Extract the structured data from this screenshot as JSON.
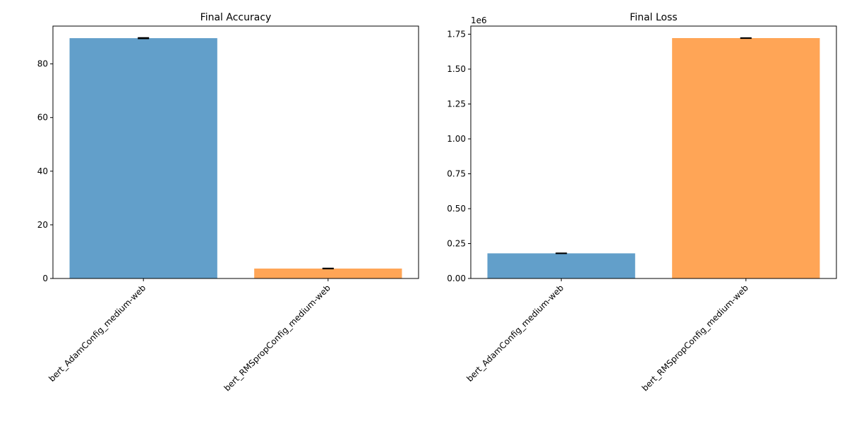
{
  "chart_data": [
    {
      "type": "bar",
      "title": "Final Accuracy",
      "xlabel": "",
      "ylabel": "",
      "categories": [
        "bert_AdamConfig_medium-web",
        "bert_RMSpropConfig_medium-web"
      ],
      "values": [
        89.6,
        3.7
      ],
      "errors": [
        0.15,
        0.1
      ],
      "colors": [
        "#629fca",
        "#ffa556"
      ],
      "ylim": [
        0,
        94.1
      ],
      "yticks": [
        0,
        20,
        40,
        60,
        80
      ],
      "ytick_labels": [
        "0",
        "20",
        "40",
        "60",
        "80"
      ],
      "scale_label": "",
      "grid": false
    },
    {
      "type": "bar",
      "title": "Final Loss",
      "xlabel": "",
      "ylabel": "",
      "categories": [
        "bert_AdamConfig_medium-web",
        "bert_RMSpropConfig_medium-web"
      ],
      "values": [
        180000,
        1722000
      ],
      "errors": [
        1500,
        1500
      ],
      "colors": [
        "#629fca",
        "#ffa556"
      ],
      "ylim": [
        0,
        1808000
      ],
      "yticks": [
        0,
        250000,
        500000,
        750000,
        1000000,
        1250000,
        1500000,
        1750000
      ],
      "ytick_labels": [
        "0.00",
        "0.25",
        "0.50",
        "0.75",
        "1.00",
        "1.25",
        "1.50",
        "1.75"
      ],
      "scale_label": "1e6",
      "grid": false
    }
  ]
}
